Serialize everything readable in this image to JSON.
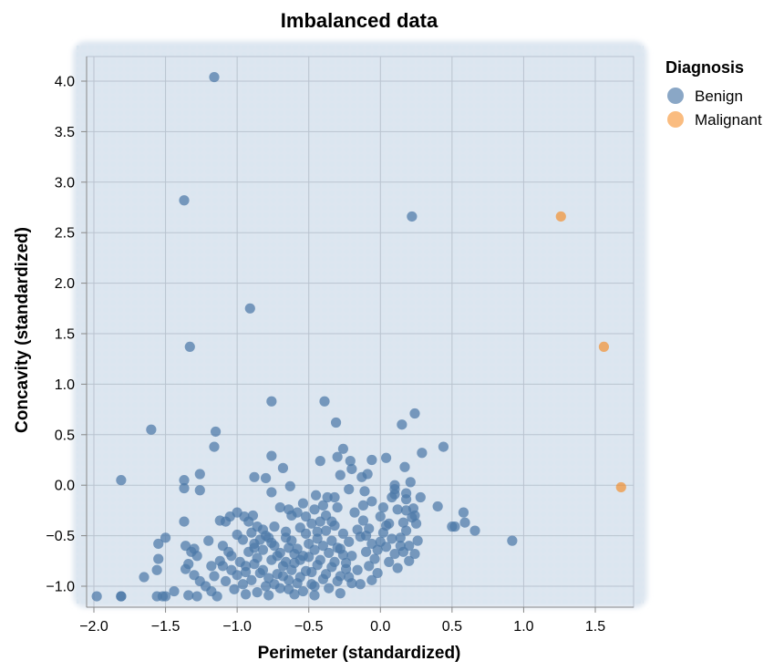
{
  "chart_data": {
    "type": "scatter",
    "title": "Imbalanced data",
    "xlabel": "Perimeter (standardized)",
    "ylabel": "Concavity (standardized)",
    "xlim": [
      -2.05,
      1.85
    ],
    "ylim": [
      -1.17,
      4.3
    ],
    "x_ticks": [
      -2.0,
      -1.5,
      -1.0,
      -0.5,
      0.0,
      0.5,
      1.0,
      1.5
    ],
    "x_tick_labels": [
      "−2.0",
      "−1.5",
      "−1.0",
      "−0.5",
      "0.0",
      "0.5",
      "1.0",
      "1.5"
    ],
    "y_ticks": [
      -1.0,
      -0.5,
      0.0,
      0.5,
      1.0,
      1.5,
      2.0,
      2.5,
      3.0,
      3.5,
      4.0
    ],
    "y_tick_labels": [
      "−1.0",
      "−0.5",
      "0.0",
      "0.5",
      "1.0",
      "1.5",
      "2.0",
      "2.5",
      "3.0",
      "3.5",
      "4.0"
    ],
    "grid": true,
    "background_region": "classifier decision region shaded blue (Benign)",
    "legend": {
      "title": "Diagnosis",
      "placement": "top-right outside",
      "entries": [
        {
          "name": "Benign",
          "color": "#4c78a8"
        },
        {
          "name": "Malignant",
          "color": "#f58518"
        }
      ]
    },
    "series": [
      {
        "name": "Benign",
        "color": "#4c78a8",
        "points": [
          [
            -1.16,
            4.04
          ],
          [
            -1.37,
            2.82
          ],
          [
            0.22,
            2.66
          ],
          [
            -0.91,
            1.75
          ],
          [
            -1.33,
            1.37
          ],
          [
            -0.76,
            0.83
          ],
          [
            -0.39,
            0.83
          ],
          [
            -0.31,
            0.62
          ],
          [
            0.24,
            0.71
          ],
          [
            0.15,
            0.6
          ],
          [
            -1.6,
            0.55
          ],
          [
            -1.15,
            0.53
          ],
          [
            -1.16,
            0.38
          ],
          [
            0.44,
            0.38
          ],
          [
            0.29,
            0.32
          ],
          [
            -1.81,
            0.05
          ],
          [
            -1.37,
            0.05
          ],
          [
            -1.26,
            0.11
          ],
          [
            -1.37,
            -0.03
          ],
          [
            -1.26,
            -0.05
          ],
          [
            -0.76,
            0.29
          ],
          [
            -0.68,
            0.17
          ],
          [
            -0.42,
            0.24
          ],
          [
            -0.26,
            0.36
          ],
          [
            -0.21,
            0.24
          ],
          [
            -0.3,
            0.28
          ],
          [
            -0.06,
            0.25
          ],
          [
            0.17,
            0.18
          ],
          [
            0.21,
            0.03
          ],
          [
            -0.13,
            0.08
          ],
          [
            0.04,
            0.27
          ],
          [
            -0.09,
            0.11
          ],
          [
            -0.2,
            0.16
          ],
          [
            -0.28,
            0.1
          ],
          [
            -0.8,
            0.07
          ],
          [
            -0.88,
            0.08
          ],
          [
            -0.76,
            -0.07
          ],
          [
            -0.63,
            -0.01
          ],
          [
            -0.45,
            -0.1
          ],
          [
            -0.37,
            -0.12
          ],
          [
            -0.22,
            -0.04
          ],
          [
            -0.32,
            -0.12
          ],
          [
            -0.11,
            -0.06
          ],
          [
            0.1,
            0.0
          ],
          [
            0.1,
            -0.04
          ],
          [
            0.1,
            -0.09
          ],
          [
            0.18,
            -0.08
          ],
          [
            0.28,
            -0.12
          ],
          [
            0.4,
            -0.21
          ],
          [
            0.23,
            -0.23
          ],
          [
            0.18,
            -0.25
          ],
          [
            0.24,
            -0.3
          ],
          [
            0.16,
            -0.37
          ],
          [
            0.25,
            -0.38
          ],
          [
            0.58,
            -0.27
          ],
          [
            0.59,
            -0.37
          ],
          [
            0.5,
            -0.41
          ],
          [
            0.52,
            -0.41
          ],
          [
            0.66,
            -0.45
          ],
          [
            0.92,
            -0.55
          ],
          [
            -1.37,
            -0.36
          ],
          [
            -1.12,
            -0.35
          ],
          [
            -1.08,
            -0.36
          ],
          [
            -1.05,
            -0.31
          ],
          [
            -1.0,
            -0.27
          ],
          [
            -0.95,
            -0.31
          ],
          [
            -0.89,
            -0.3
          ],
          [
            -1.55,
            -0.58
          ],
          [
            -1.55,
            -0.73
          ],
          [
            -1.56,
            -0.84
          ],
          [
            -1.5,
            -0.52
          ],
          [
            -1.65,
            -0.91
          ],
          [
            -1.81,
            -1.1
          ],
          [
            -1.81,
            -1.1
          ],
          [
            -1.98,
            -1.1
          ],
          [
            -1.5,
            -1.1
          ],
          [
            -1.52,
            -1.1
          ],
          [
            -1.56,
            -1.1
          ],
          [
            -1.44,
            -1.05
          ],
          [
            -1.36,
            -0.6
          ],
          [
            -1.32,
            -0.66
          ],
          [
            -1.28,
            -0.7
          ],
          [
            -1.34,
            -0.78
          ],
          [
            -1.36,
            -0.83
          ],
          [
            -1.3,
            -0.89
          ],
          [
            -1.26,
            -0.95
          ],
          [
            -1.22,
            -1.0
          ],
          [
            -1.34,
            -1.09
          ],
          [
            -1.28,
            -1.1
          ],
          [
            -1.18,
            -1.05
          ],
          [
            -1.14,
            -1.1
          ],
          [
            -1.3,
            -0.63
          ],
          [
            -1.2,
            -0.55
          ],
          [
            -1.1,
            -0.6
          ],
          [
            -1.06,
            -0.66
          ],
          [
            -1.12,
            -0.75
          ],
          [
            -1.18,
            -0.8
          ],
          [
            -1.04,
            -0.84
          ],
          [
            -1.0,
            -0.89
          ],
          [
            -1.08,
            -0.95
          ],
          [
            -0.96,
            -0.98
          ],
          [
            -1.02,
            -1.03
          ],
          [
            -0.94,
            -1.08
          ],
          [
            -1.0,
            -0.49
          ],
          [
            -0.96,
            -0.54
          ],
          [
            -0.9,
            -0.47
          ],
          [
            -0.88,
            -0.58
          ],
          [
            -0.92,
            -0.66
          ],
          [
            -0.86,
            -0.72
          ],
          [
            -0.94,
            -0.8
          ],
          [
            -0.84,
            -0.87
          ],
          [
            -0.9,
            -0.94
          ],
          [
            -0.8,
            -1.0
          ],
          [
            -0.86,
            -1.06
          ],
          [
            -0.78,
            -1.09
          ],
          [
            -0.82,
            -0.44
          ],
          [
            -0.78,
            -0.52
          ],
          [
            -0.74,
            -0.6
          ],
          [
            -0.7,
            -0.67
          ],
          [
            -0.76,
            -0.74
          ],
          [
            -0.68,
            -0.8
          ],
          [
            -0.72,
            -0.88
          ],
          [
            -0.64,
            -0.94
          ],
          [
            -0.7,
            -1.02
          ],
          [
            -0.6,
            -1.08
          ],
          [
            -0.74,
            -0.41
          ],
          [
            -0.66,
            -0.46
          ],
          [
            -0.62,
            -0.55
          ],
          [
            -0.58,
            -0.63
          ],
          [
            -0.54,
            -0.7
          ],
          [
            -0.6,
            -0.77
          ],
          [
            -0.52,
            -0.85
          ],
          [
            -0.56,
            -0.91
          ],
          [
            -0.48,
            -0.98
          ],
          [
            -0.54,
            -1.05
          ],
          [
            -0.46,
            -1.09
          ],
          [
            -0.7,
            -0.22
          ],
          [
            -0.64,
            -0.24
          ],
          [
            -0.58,
            -0.27
          ],
          [
            -0.52,
            -0.31
          ],
          [
            -0.48,
            -0.38
          ],
          [
            -0.42,
            -0.36
          ],
          [
            -0.38,
            -0.45
          ],
          [
            -0.44,
            -0.53
          ],
          [
            -0.4,
            -0.6
          ],
          [
            -0.36,
            -0.67
          ],
          [
            -0.42,
            -0.74
          ],
          [
            -0.34,
            -0.81
          ],
          [
            -0.38,
            -0.88
          ],
          [
            -0.3,
            -0.95
          ],
          [
            -0.36,
            -1.02
          ],
          [
            -0.28,
            -1.07
          ],
          [
            -0.32,
            -0.4
          ],
          [
            -0.26,
            -0.48
          ],
          [
            -0.22,
            -0.56
          ],
          [
            -0.28,
            -0.63
          ],
          [
            -0.2,
            -0.7
          ],
          [
            -0.24,
            -0.77
          ],
          [
            -0.16,
            -0.84
          ],
          [
            -0.22,
            -0.91
          ],
          [
            -0.14,
            -0.98
          ],
          [
            -0.18,
            -0.27
          ],
          [
            -0.12,
            -0.35
          ],
          [
            -0.08,
            -0.43
          ],
          [
            -0.14,
            -0.51
          ],
          [
            -0.06,
            -0.58
          ],
          [
            -0.1,
            -0.66
          ],
          [
            -0.04,
            -0.73
          ],
          [
            -0.08,
            -0.8
          ],
          [
            -0.02,
            -0.87
          ],
          [
            -0.06,
            -0.94
          ],
          [
            0.0,
            -0.31
          ],
          [
            0.06,
            -0.38
          ],
          [
            0.02,
            -0.47
          ],
          [
            0.08,
            -0.53
          ],
          [
            0.04,
            -0.61
          ],
          [
            0.1,
            -0.68
          ],
          [
            0.06,
            -0.76
          ],
          [
            0.12,
            -0.82
          ],
          [
            0.18,
            -0.45
          ],
          [
            0.14,
            -0.52
          ],
          [
            0.2,
            -0.6
          ],
          [
            0.16,
            -0.66
          ],
          [
            0.24,
            -0.68
          ],
          [
            0.26,
            -0.55
          ],
          [
            -0.92,
            -0.36
          ],
          [
            -0.86,
            -0.41
          ],
          [
            -0.8,
            -0.5
          ],
          [
            -0.76,
            -0.57
          ],
          [
            -0.82,
            -0.64
          ],
          [
            -0.72,
            -0.7
          ],
          [
            -0.66,
            -0.76
          ],
          [
            -0.62,
            -0.84
          ],
          [
            -0.68,
            -0.9
          ],
          [
            -0.58,
            -0.97
          ],
          [
            -0.64,
            -1.03
          ],
          [
            -0.5,
            -0.58
          ],
          [
            -0.46,
            -0.64
          ],
          [
            -0.5,
            -0.71
          ],
          [
            -0.44,
            -0.79
          ],
          [
            -0.48,
            -0.86
          ],
          [
            -0.4,
            -0.93
          ],
          [
            -0.46,
            -1.0
          ],
          [
            -0.56,
            -0.42
          ],
          [
            -0.52,
            -0.48
          ],
          [
            -0.34,
            -0.55
          ],
          [
            -0.3,
            -0.62
          ],
          [
            -0.26,
            -0.69
          ],
          [
            -0.32,
            -0.76
          ],
          [
            -0.24,
            -0.83
          ],
          [
            -0.28,
            -0.9
          ],
          [
            -0.2,
            -0.97
          ],
          [
            -0.64,
            -0.62
          ],
          [
            -0.6,
            -0.68
          ],
          [
            -0.56,
            -0.74
          ],
          [
            -0.66,
            -0.52
          ],
          [
            -0.84,
            -0.54
          ],
          [
            -0.88,
            -0.62
          ],
          [
            -1.04,
            -0.7
          ],
          [
            -1.1,
            -0.8
          ],
          [
            -1.16,
            -0.9
          ],
          [
            -0.98,
            -0.76
          ],
          [
            -0.94,
            -0.86
          ],
          [
            -0.88,
            -0.78
          ],
          [
            -0.82,
            -0.84
          ],
          [
            -0.78,
            -0.92
          ],
          [
            -0.74,
            -0.98
          ],
          [
            -0.38,
            -0.3
          ],
          [
            -0.34,
            -0.36
          ],
          [
            -0.3,
            -0.22
          ],
          [
            -0.4,
            -0.2
          ],
          [
            -0.46,
            -0.24
          ],
          [
            -0.54,
            -0.18
          ],
          [
            -0.62,
            -0.3
          ],
          [
            -0.44,
            -0.46
          ],
          [
            -0.12,
            -0.2
          ],
          [
            -0.06,
            -0.16
          ],
          [
            0.02,
            -0.22
          ],
          [
            0.08,
            -0.12
          ],
          [
            0.12,
            -0.24
          ],
          [
            0.22,
            -0.32
          ],
          [
            0.18,
            -0.14
          ],
          [
            -0.16,
            -0.44
          ],
          [
            -0.1,
            -0.5
          ],
          [
            0.0,
            -0.56
          ],
          [
            0.04,
            -0.4
          ],
          [
            -0.02,
            -0.64
          ],
          [
            0.14,
            -0.6
          ],
          [
            0.2,
            -0.75
          ]
        ]
      },
      {
        "name": "Malignant",
        "color": "#f58518",
        "points": [
          [
            1.26,
            2.66
          ],
          [
            1.56,
            1.37
          ],
          [
            1.68,
            -0.02
          ]
        ]
      }
    ]
  }
}
